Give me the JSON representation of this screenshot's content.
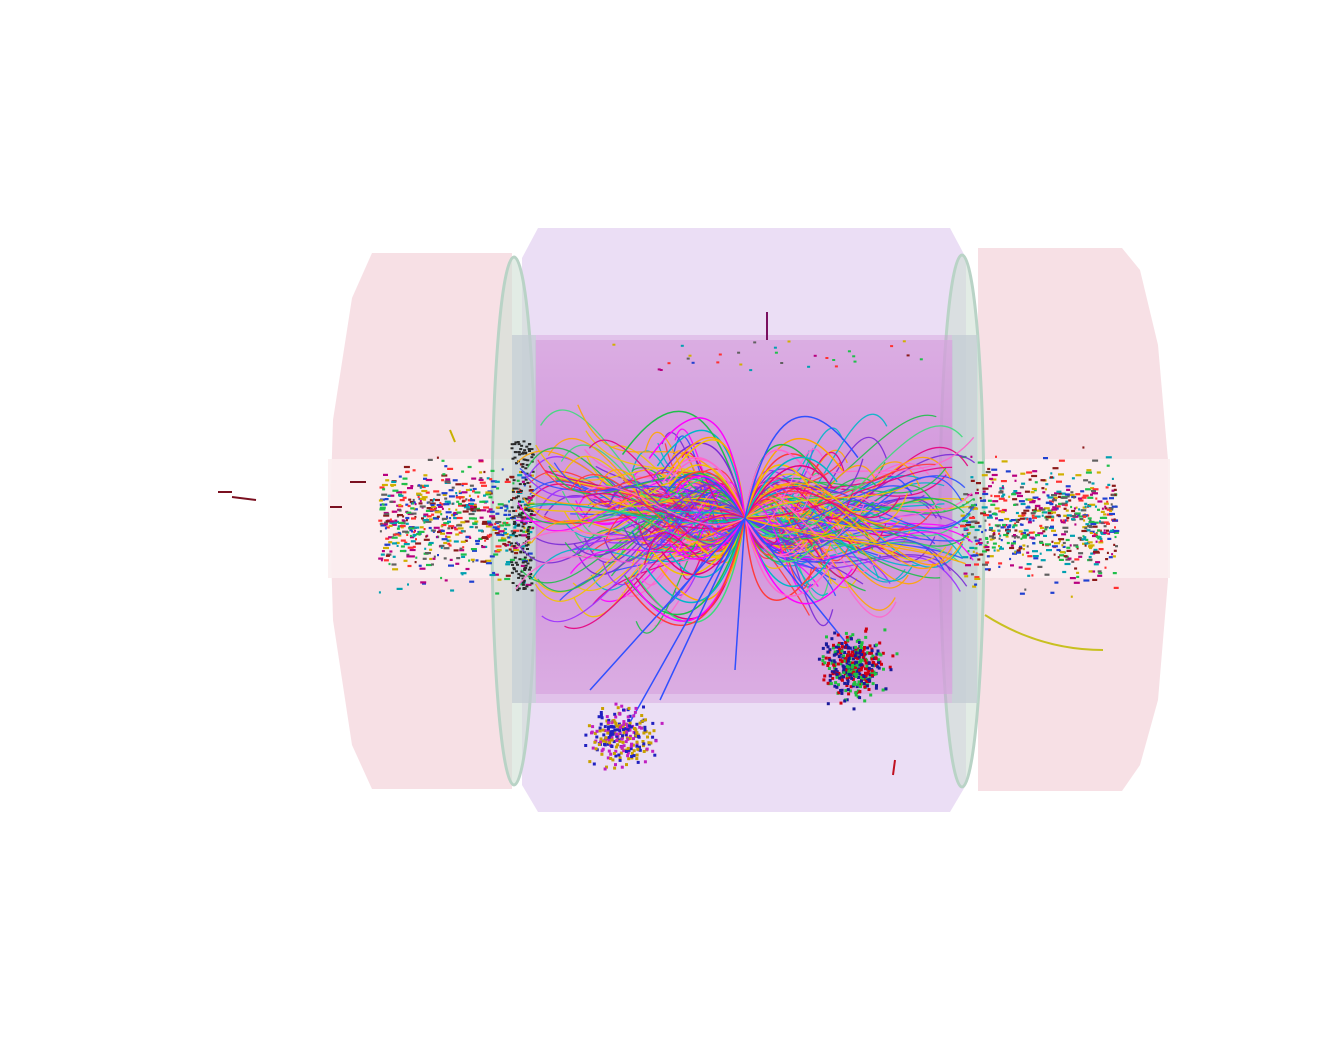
{
  "scene": {
    "kind": "particle-collision-event-display",
    "background": "#ffffff",
    "colors": {
      "calorimeter_endcap": "#f4d6dc",
      "outer_barrel": "#e6d6f2",
      "inner_tracker": "#cf8ed8",
      "tracker_core": "#c978d4",
      "ring": "#bfd8cf",
      "beam_band": "#fbeef0"
    },
    "track_palette": [
      "#ff00ff",
      "#e6007e",
      "#9b30ff",
      "#3050ff",
      "#00b7c8",
      "#1fbf4a",
      "#f2c200",
      "#ff3b3b",
      "#7a2bd6",
      "#ff66cc",
      "#3cdc7a",
      "#ffa500"
    ],
    "hit_palette": [
      "#8b1a1a",
      "#2040d0",
      "#1fbf4a",
      "#b80080",
      "#00a0b0",
      "#d0b000",
      "#606060",
      "#ff3030"
    ],
    "jet_colors": {
      "lower_left": [
        "#c020c0",
        "#c8a000",
        "#2020c0"
      ],
      "lower_right": [
        "#d00010",
        "#1a1a9a",
        "#20c040"
      ]
    }
  }
}
